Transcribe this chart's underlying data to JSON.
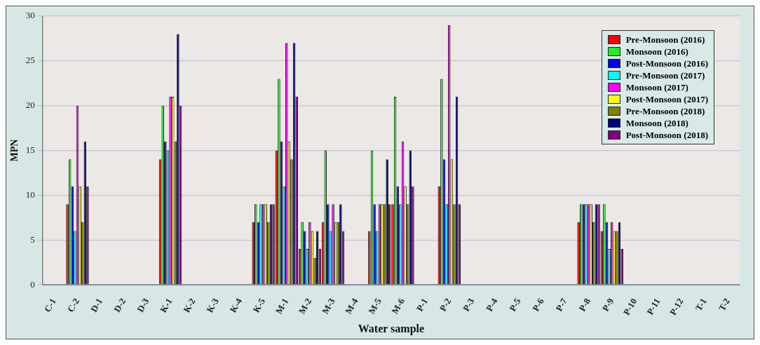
{
  "chart_data": {
    "type": "bar",
    "xlabel": "Water sample",
    "ylabel": "MPN",
    "categories": [
      "C-1",
      "C-2",
      "D-1",
      "D-2",
      "D-3",
      "K-1",
      "K-2",
      "K-3",
      "K-4",
      "K-5",
      "M-1",
      "M-2",
      "M-3",
      "M-4",
      "M-5",
      "M-6",
      "P-1",
      "P-2",
      "P-3",
      "P-4",
      "P-5",
      "P-6",
      "P-7",
      "P-8",
      "P-9",
      "P-10",
      "P-11",
      "P-12",
      "T-1",
      "T-2"
    ],
    "series": [
      {
        "name": "Pre-Monsoon (2016)",
        "color": "#ff0000",
        "values": [
          0,
          9,
          0,
          0,
          0,
          14,
          0,
          0,
          0,
          7,
          15,
          4,
          7,
          0,
          6,
          9,
          0,
          11,
          0,
          0,
          0,
          0,
          0,
          7,
          6,
          0,
          0,
          0,
          0,
          0
        ]
      },
      {
        "name": "Monsoon (2016)",
        "color": "#22ee22",
        "values": [
          0,
          14,
          0,
          0,
          0,
          20,
          0,
          0,
          0,
          9,
          23,
          7,
          15,
          0,
          15,
          21,
          0,
          23,
          0,
          0,
          0,
          0,
          0,
          9,
          9,
          0,
          0,
          0,
          0,
          0
        ]
      },
      {
        "name": "Post-Monsoon (2016)",
        "color": "#0000ff",
        "values": [
          0,
          11,
          0,
          0,
          0,
          16,
          0,
          0,
          0,
          7,
          16,
          6,
          9,
          0,
          9,
          11,
          0,
          14,
          0,
          0,
          0,
          0,
          0,
          9,
          7,
          0,
          0,
          0,
          0,
          0
        ]
      },
      {
        "name": "Pre-Monsoon (2017)",
        "color": "#00ffff",
        "values": [
          0,
          6,
          0,
          0,
          0,
          15,
          0,
          0,
          0,
          9,
          11,
          4,
          6,
          0,
          6,
          9,
          0,
          9,
          0,
          0,
          0,
          0,
          0,
          9,
          4,
          0,
          0,
          0,
          0,
          0
        ]
      },
      {
        "name": "Monsoon (2017)",
        "color": "#ff00ff",
        "values": [
          0,
          20,
          0,
          0,
          0,
          21,
          0,
          0,
          0,
          9,
          27,
          7,
          9,
          0,
          9,
          16,
          0,
          29,
          0,
          0,
          0,
          0,
          0,
          9,
          7,
          0,
          0,
          0,
          0,
          0
        ]
      },
      {
        "name": "Post-Monsoon (2017)",
        "color": "#ffff00",
        "values": [
          0,
          11,
          0,
          0,
          0,
          21,
          0,
          0,
          0,
          9,
          16,
          6,
          7,
          0,
          9,
          11,
          0,
          14,
          0,
          0,
          0,
          0,
          0,
          9,
          6,
          0,
          0,
          0,
          0,
          0
        ]
      },
      {
        "name": "Pre-Monsoon (2018)",
        "color": "#808000",
        "values": [
          0,
          7,
          0,
          0,
          0,
          16,
          0,
          0,
          0,
          7,
          14,
          3,
          7,
          0,
          9,
          9,
          0,
          9,
          0,
          0,
          0,
          0,
          0,
          7,
          6,
          0,
          0,
          0,
          0,
          0
        ]
      },
      {
        "name": "Monsoon (2018)",
        "color": "#000080",
        "values": [
          0,
          16,
          0,
          0,
          0,
          28,
          0,
          0,
          0,
          9,
          27,
          6,
          9,
          0,
          14,
          15,
          0,
          21,
          0,
          0,
          0,
          0,
          0,
          9,
          7,
          0,
          0,
          0,
          0,
          0
        ]
      },
      {
        "name": "Post-Monsoon (2018)",
        "color": "#800080",
        "values": [
          0,
          11,
          0,
          0,
          0,
          20,
          0,
          0,
          0,
          9,
          21,
          4,
          6,
          0,
          9,
          11,
          0,
          9,
          0,
          0,
          0,
          0,
          0,
          9,
          4,
          0,
          0,
          0,
          0,
          0
        ]
      }
    ],
    "ylim": [
      0,
      30
    ],
    "yticks": [
      0,
      5,
      10,
      15,
      20,
      25,
      30
    ],
    "grid": "y",
    "legend": "top right"
  }
}
